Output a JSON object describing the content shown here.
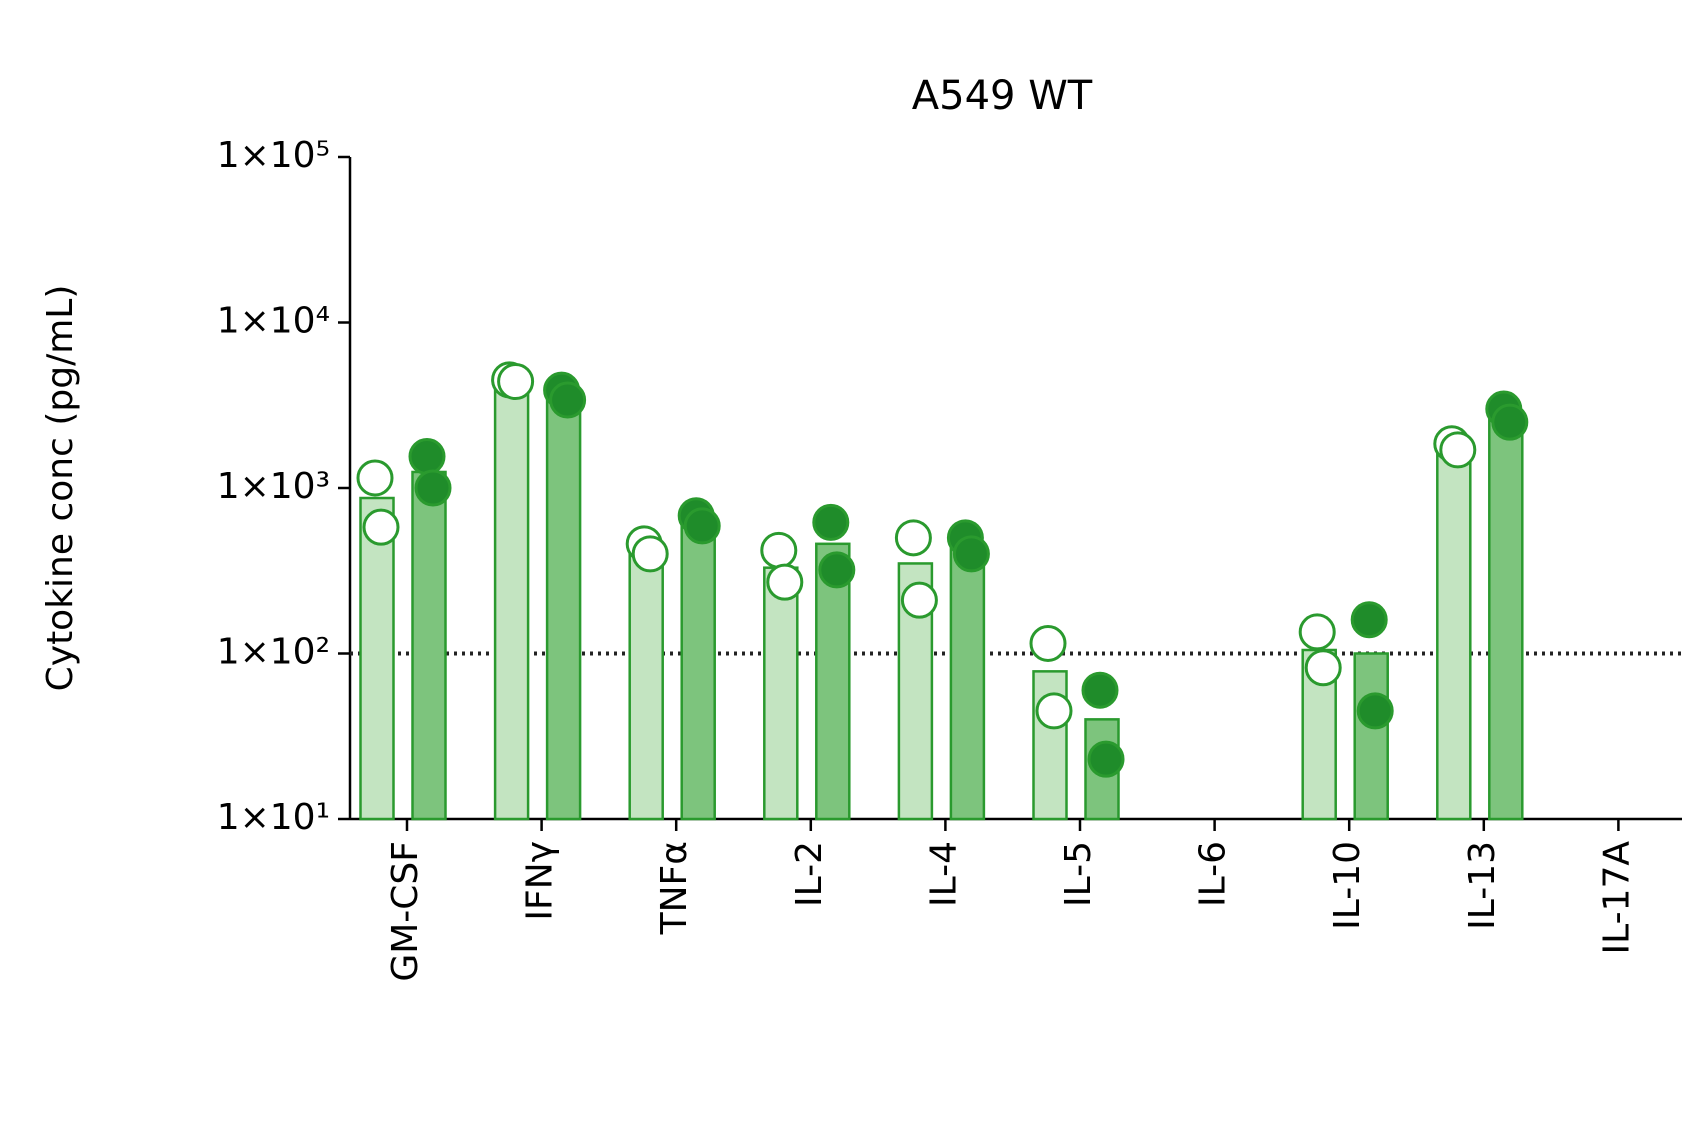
{
  "chart_data": {
    "type": "bar",
    "title": "A549 WT",
    "y_label": "Cytokine conc (pg/mL)",
    "log_scale": true,
    "categories": [
      "GM-CSF",
      "IFNγ",
      "TNFα",
      "IL-2",
      "IL-4",
      "IL-5",
      "IL-6",
      "IL-10",
      "IL-13",
      "IL-17A"
    ],
    "series": [
      {
        "color": "#c3e4c1",
        "edge_color": "#2a9a2e",
        "marker_color": "#ffffff",
        "values": [
          870,
          4400,
          420,
          330,
          350,
          78,
          null,
          105,
          1800,
          null
        ],
        "points": [
          [
            1150,
            580
          ],
          [
            4500,
            4400
          ],
          [
            460,
            400
          ],
          [
            420,
            270
          ],
          [
            500,
            210
          ],
          [
            115,
            45
          ],
          null,
          [
            135,
            82
          ],
          [
            1850,
            1700
          ],
          null
        ]
      },
      {
        "color": "#7dc47d",
        "edge_color": "#2a9a2e",
        "marker_color": "#1f8c2a",
        "values": [
          1250,
          3600,
          620,
          460,
          450,
          40,
          null,
          100,
          2700,
          null
        ],
        "points": [
          [
            1550,
            1000
          ],
          [
            3900,
            3400
          ],
          [
            680,
            590
          ],
          [
            620,
            320
          ],
          [
            500,
            400
          ],
          [
            60,
            23
          ],
          null,
          [
            160,
            45
          ],
          [
            3000,
            2500
          ],
          null
        ]
      }
    ],
    "reference_line": 100,
    "ylim": [
      10,
      100000
    ],
    "yticks": [
      {
        "value": 10,
        "label": "1×10¹"
      },
      {
        "value": 100,
        "label": "1×10²"
      },
      {
        "value": 1000,
        "label": "1×10³"
      },
      {
        "value": 10000,
        "label": "1×10⁴"
      },
      {
        "value": 100000,
        "label": "1×10⁵"
      }
    ]
  }
}
